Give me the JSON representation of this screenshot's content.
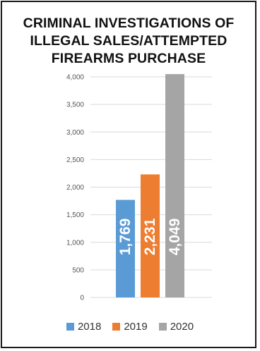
{
  "chart_data": {
    "type": "bar",
    "title_lines": [
      "CRIMINAL INVESTIGATIONS OF",
      "ILLEGAL SALES/ATTEMPTED",
      "FIREARMS PURCHASE"
    ],
    "categories": [
      "2018",
      "2019",
      "2020"
    ],
    "values": [
      1769,
      2231,
      4049
    ],
    "value_labels": [
      "1,769",
      "2,231",
      "4,049"
    ],
    "colors": [
      "#5b9bd5",
      "#ed7d31",
      "#a5a5a5"
    ],
    "yticks": [
      0,
      500,
      1000,
      1500,
      2000,
      2500,
      3000,
      3500,
      4000
    ],
    "ytick_labels": [
      "0",
      "500",
      "1,000",
      "1,500",
      "2,000",
      "2,500",
      "3,000",
      "3,500",
      "4,000"
    ],
    "ylim": [
      0,
      4000
    ],
    "grid": true,
    "legend": "bottom",
    "xlabel": "",
    "ylabel": ""
  }
}
